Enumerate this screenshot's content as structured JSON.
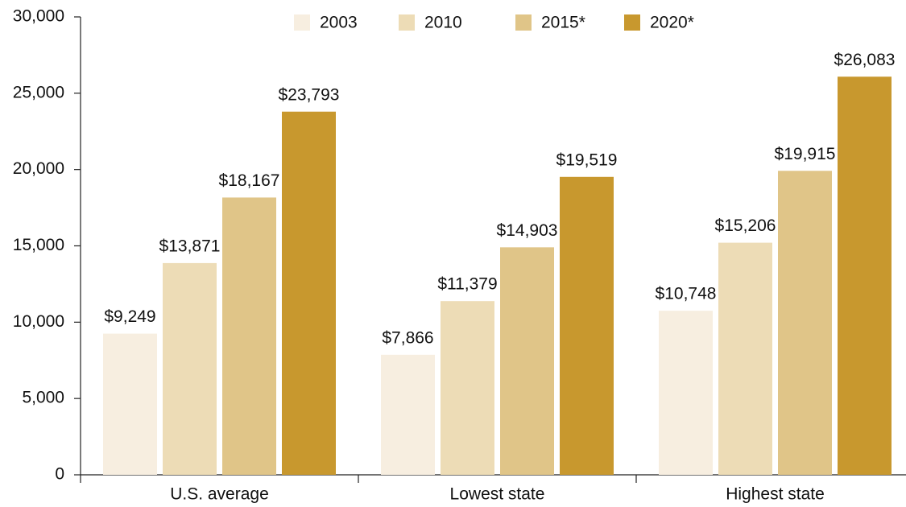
{
  "chart_data": {
    "type": "bar",
    "categories": [
      "U.S. average",
      "Lowest state",
      "Highest state"
    ],
    "series": [
      {
        "name": "2003",
        "color": "#f7eee0",
        "values": [
          9249,
          7866,
          10748
        ],
        "value_labels": [
          "$9,249",
          "$7,866",
          "$10,748"
        ]
      },
      {
        "name": "2010",
        "color": "#eddcb6",
        "values": [
          13871,
          11379,
          15206
        ],
        "value_labels": [
          "$13,871",
          "$11,379",
          "$15,206"
        ]
      },
      {
        "name": "2015*",
        "color": "#e0c588",
        "values": [
          18167,
          14903,
          19915
        ],
        "value_labels": [
          "$18,167",
          "$14,903",
          "$19,915"
        ]
      },
      {
        "name": "2020*",
        "color": "#c8982e",
        "values": [
          23793,
          19519,
          26083
        ],
        "value_labels": [
          "$23,793",
          "$19,519",
          "$26,083"
        ]
      }
    ],
    "ylim": [
      0,
      30000
    ],
    "yticks": [
      0,
      {
        "value": 5000,
        "label": "5,000"
      },
      {
        "value": 10000,
        "label": "10,000"
      },
      {
        "value": 15000,
        "label": "15,000"
      },
      {
        "value": 20000,
        "label": "20,000"
      },
      {
        "value": 25000,
        "label": "25,000"
      },
      {
        "value": 30000,
        "label": "30,000"
      }
    ],
    "grid": false,
    "legend": "top"
  }
}
